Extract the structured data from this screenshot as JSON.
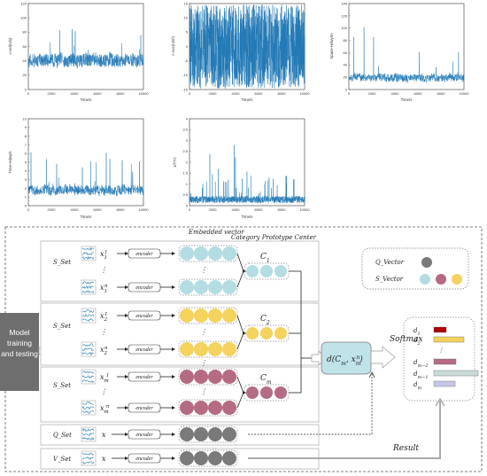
{
  "plots": [
    {
      "id": "p1",
      "ylabel": "v-vel(m/s)",
      "xlabel": "Time/s",
      "yticks": [
        "0",
        "20",
        "40",
        "60",
        "80",
        "100",
        "120"
      ],
      "xticks": [
        "0",
        "2000",
        "4000",
        "6000",
        "8000",
        "10000"
      ]
    },
    {
      "id": "p2",
      "ylabel": "v-Acc(m/s²)",
      "xlabel": "Time/s",
      "yticks": [
        "-15",
        "-10",
        "-5",
        "0",
        "5",
        "10",
        "15"
      ],
      "xticks": [
        "0",
        "2000",
        "4000",
        "6000",
        "8000",
        "10000"
      ]
    },
    {
      "id": "p3",
      "ylabel": "Space-Hdwy/m",
      "xlabel": "Time/s",
      "yticks": [
        "0",
        "20",
        "40",
        "60",
        "80",
        "100",
        "120",
        "140"
      ],
      "xticks": [
        "0",
        "2000",
        "4000",
        "6000",
        "8000",
        "10000"
      ]
    },
    {
      "id": "p4",
      "ylabel": "Time-Hdwy/s",
      "xlabel": "Time/s",
      "yticks": [
        "0",
        "1",
        "2",
        "3",
        "4",
        "5",
        "6",
        "7",
        "8",
        "9",
        "10"
      ],
      "xticks": [
        "0",
        "2000",
        "4000",
        "6000",
        "8000",
        "10000"
      ]
    },
    {
      "id": "p5",
      "ylabel": "1/TTC",
      "xlabel": "Time/s",
      "yticks": [
        "0",
        "0.5",
        "1",
        "1.5",
        "2",
        "2.5",
        "3",
        "3.5",
        "4"
      ],
      "xticks": [
        "0",
        "2000",
        "4000",
        "6000",
        "8000",
        "10000"
      ]
    }
  ],
  "diagram": {
    "model_label": "Model training and testing",
    "embedded_vector": "Embedded vector",
    "prototype_center": "Category Prototype Center",
    "s_set": "S_Set",
    "q_set": "Q_Set",
    "v_set": "V_Set",
    "encoder": "encoder",
    "x_var": "x",
    "legend_q": "Q_Vector",
    "legend_s": "S_Vector",
    "softmax": "Softmax",
    "result": "Result",
    "rows": [
      {
        "top": "x",
        "top_sub": "1",
        "top_sup": "1",
        "bot": "x",
        "bot_sub": "1",
        "bot_sup": "n",
        "center": "C",
        "center_sub": "1"
      },
      {
        "top": "x",
        "top_sub": "2",
        "top_sup": "1",
        "bot": "x",
        "bot_sub": "2",
        "bot_sup": "n",
        "center": "C",
        "center_sub": "2"
      },
      {
        "top": "x",
        "top_sub": "m",
        "top_sup": "1",
        "bot": "x",
        "bot_sub": "m",
        "bot_sup": "n",
        "center": "C",
        "center_sub": "m"
      }
    ],
    "distance": "d(C",
    "distance_sub": "m",
    "distance_mid": ", x",
    "distance_sub2": "m",
    "distance_sup2": "n",
    "distance_end": ")",
    "outputs": [
      {
        "label": "d",
        "sub": "1"
      },
      {
        "label": "d",
        "sub": "2"
      },
      {
        "label": "d",
        "sub": "m−2"
      },
      {
        "label": "d",
        "sub": "m−1"
      },
      {
        "label": "d",
        "sub": "m"
      }
    ],
    "colors": {
      "s1": "#b3dde3",
      "s2": "#f4d35e",
      "s3": "#b56b82",
      "q": "#7a7a7a",
      "model": "#6e6e6e",
      "d_box": "#bfe3e8"
    },
    "output_colors": [
      "#b00000",
      "#f4d35e",
      "#b56b82",
      "#c9dbd8",
      "#c6c6ea"
    ]
  }
}
